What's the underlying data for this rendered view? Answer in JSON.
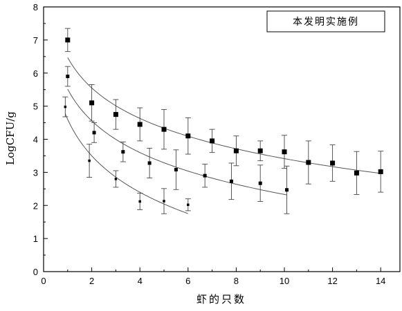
{
  "chart_data": {
    "type": "scatter",
    "title": "",
    "xlabel": "虾的只数",
    "ylabel": "LogCFU/g",
    "xlim": [
      0,
      15
    ],
    "ylim": [
      0,
      8
    ],
    "x_ticks": [
      0,
      2,
      4,
      6,
      8,
      10,
      12,
      14
    ],
    "y_ticks": [
      0,
      1,
      2,
      3,
      4,
      5,
      6,
      7,
      8
    ],
    "grid": false,
    "legend_text": "本发明实施例",
    "legend_position": "top-right",
    "series": [
      {
        "marker": "large-square",
        "x": [
          1,
          2,
          3,
          4,
          5,
          6,
          7,
          8,
          9,
          10,
          11,
          12,
          13,
          14
        ],
        "y": [
          7.0,
          5.1,
          4.75,
          4.45,
          4.3,
          4.1,
          3.95,
          3.65,
          3.65,
          3.62,
          3.3,
          3.28,
          2.98,
          3.02
        ],
        "err": [
          0.35,
          0.55,
          0.45,
          0.5,
          0.6,
          0.55,
          0.35,
          0.45,
          0.3,
          0.5,
          0.65,
          0.55,
          0.65,
          0.62
        ],
        "fit": [
          1,
          14
        ]
      },
      {
        "marker": "medium-square",
        "x": [
          1,
          2.1,
          3.3,
          4.4,
          5.5,
          6.7,
          7.8,
          9,
          10.1
        ],
        "y": [
          5.9,
          4.2,
          3.62,
          3.28,
          3.08,
          2.9,
          2.73,
          2.67,
          2.47
        ],
        "err": [
          0.3,
          0.3,
          0.3,
          0.45,
          0.6,
          0.35,
          0.55,
          0.55,
          0.72
        ],
        "fit": [
          1,
          10.1
        ]
      },
      {
        "marker": "small-square",
        "x": [
          0.9,
          1.9,
          3,
          4,
          5,
          6
        ],
        "y": [
          4.98,
          3.35,
          2.8,
          2.12,
          2.13,
          2.02
        ],
        "err": [
          0.3,
          0.5,
          0.25,
          0.25,
          0.38,
          0.18
        ],
        "fit": [
          0.9,
          6
        ]
      }
    ]
  }
}
